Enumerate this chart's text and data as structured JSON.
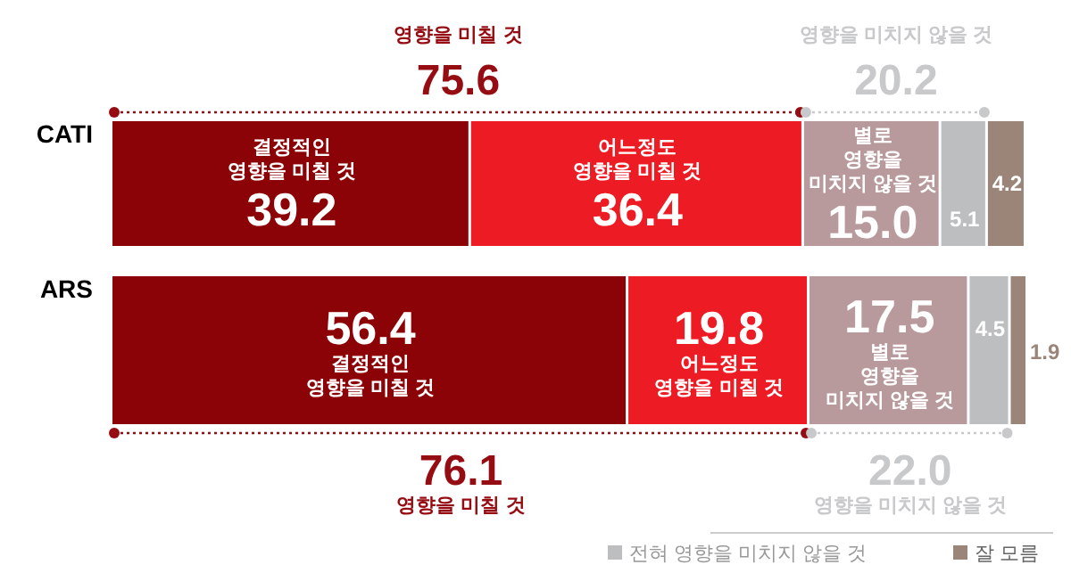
{
  "chart_data": {
    "type": "bar",
    "orientation": "horizontal",
    "stacked": true,
    "data_labels": true,
    "legend": "bottom right",
    "categories": [
      "CATI",
      "ARS"
    ],
    "series": [
      {
        "name": "결정적인\n영향을 미칠 것",
        "color": "#8b0306",
        "values": [
          39.2,
          56.4
        ],
        "value_labels": [
          "39.2",
          "56.4"
        ]
      },
      {
        "name": "어느정도\n영향을 미칠 것",
        "color": "#ed1c24",
        "values": [
          36.4,
          19.8
        ],
        "value_labels": [
          "36.4",
          "19.8"
        ]
      },
      {
        "name": "별로\n영향을\n미치지 않을 것",
        "color": "#b89a9c",
        "values": [
          15.0,
          17.5
        ],
        "value_labels": [
          "15.0",
          "17.5"
        ]
      },
      {
        "name": "전혀 영향을 미치지 않을 것",
        "color": "#bcbec0",
        "values": [
          5.1,
          4.5
        ],
        "value_labels": [
          "5.1",
          "4.5"
        ]
      },
      {
        "name": "잘 모름",
        "color": "#9b8579",
        "values": [
          4.2,
          1.9
        ],
        "value_labels": [
          "4.2",
          "1.9"
        ]
      }
    ],
    "annotations": [
      "75.6",
      "영향을 미칠 것",
      "20.2",
      "영향을 미치지 않을 것",
      "76.1",
      "영향을 미칠 것",
      "22.0",
      "영향을 미치지 않을 것"
    ]
  }
}
